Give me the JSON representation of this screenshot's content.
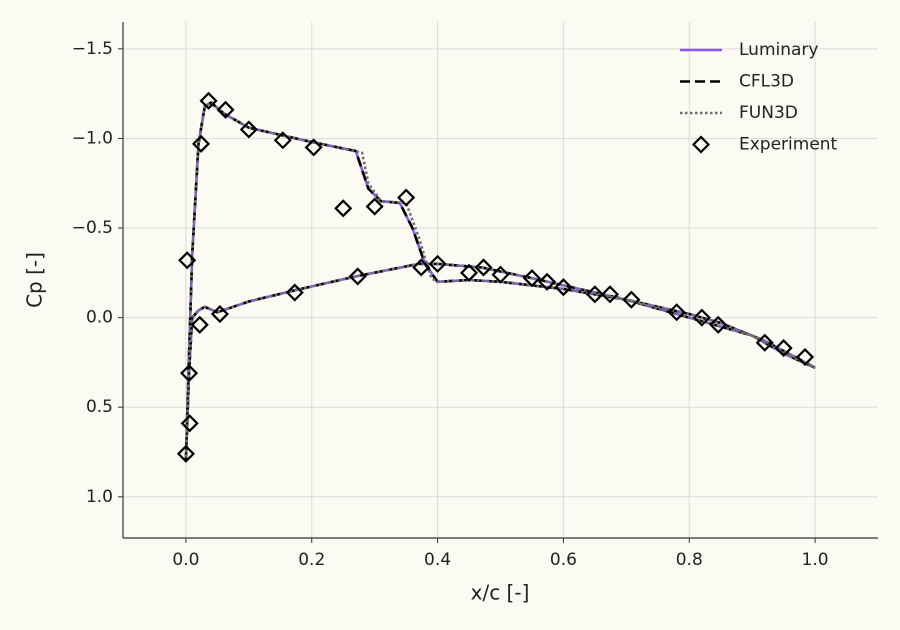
{
  "chart_data": {
    "type": "line",
    "xlabel": "x/c [-]",
    "ylabel": "Cp [-]",
    "xlim": [
      -0.1,
      1.1
    ],
    "ylim": [
      -1.65,
      1.23
    ],
    "y_inverted": true,
    "grid": true,
    "legend": "upper right",
    "xticks": [
      {
        "value": 0,
        "label": "0.0"
      },
      {
        "value": 0.2,
        "label": "0.2"
      },
      {
        "value": 0.4,
        "label": "0.4"
      },
      {
        "value": 0.6,
        "label": "0.6"
      },
      {
        "value": 0.8,
        "label": "0.8"
      },
      {
        "value": 1,
        "label": "1.0"
      }
    ],
    "yticks": [
      {
        "value": -1.5,
        "label": "−1.5"
      },
      {
        "value": -1,
        "label": "−1.0"
      },
      {
        "value": -0.5,
        "label": "−0.5"
      },
      {
        "value": 0,
        "label": "0.0"
      },
      {
        "value": 0.5,
        "label": "0.5"
      },
      {
        "value": 1,
        "label": "1.0"
      }
    ],
    "series": [
      {
        "name": "Luminary",
        "color": "#8b55f0",
        "linestyle": "solid",
        "x": [
          1.0,
          0.95,
          0.9,
          0.8,
          0.7,
          0.6,
          0.5,
          0.45,
          0.4,
          0.38,
          0.36,
          0.34,
          0.31,
          0.29,
          0.27,
          0.2,
          0.15,
          0.1,
          0.06,
          0.04,
          0.03,
          0.02,
          0.01,
          0.005,
          0.0,
          0.005,
          0.01,
          0.02,
          0.03,
          0.05,
          0.1,
          0.17,
          0.27,
          0.37,
          0.4,
          0.47,
          0.55,
          0.6,
          0.65,
          0.7,
          0.8,
          0.85,
          0.92,
          1.0
        ],
        "values": [
          0.28,
          0.2,
          0.1,
          0.0,
          -0.1,
          -0.16,
          -0.2,
          -0.21,
          -0.2,
          -0.3,
          -0.5,
          -0.64,
          -0.65,
          -0.72,
          -0.93,
          -0.98,
          -1.02,
          -1.06,
          -1.14,
          -1.2,
          -1.18,
          -0.97,
          -0.35,
          0.2,
          0.8,
          0.3,
          0.0,
          -0.04,
          -0.06,
          -0.03,
          -0.09,
          -0.15,
          -0.23,
          -0.3,
          -0.3,
          -0.28,
          -0.22,
          -0.18,
          -0.14,
          -0.1,
          -0.02,
          0.03,
          0.13,
          0.28
        ]
      },
      {
        "name": "CFL3D",
        "color": "#000000",
        "linestyle": "dashed",
        "x": [
          1.0,
          0.95,
          0.9,
          0.8,
          0.7,
          0.6,
          0.5,
          0.45,
          0.4,
          0.38,
          0.36,
          0.34,
          0.31,
          0.29,
          0.27,
          0.2,
          0.15,
          0.1,
          0.06,
          0.04,
          0.03,
          0.02,
          0.01,
          0.005,
          0.0,
          0.005,
          0.01,
          0.02,
          0.03,
          0.05,
          0.1,
          0.17,
          0.27,
          0.37,
          0.4,
          0.47,
          0.55,
          0.6,
          0.65,
          0.7,
          0.8,
          0.85,
          0.92,
          1.0
        ],
        "values": [
          0.28,
          0.2,
          0.1,
          0.0,
          -0.1,
          -0.16,
          -0.2,
          -0.21,
          -0.2,
          -0.3,
          -0.5,
          -0.64,
          -0.65,
          -0.72,
          -0.93,
          -0.98,
          -1.02,
          -1.06,
          -1.14,
          -1.2,
          -1.18,
          -0.97,
          -0.35,
          0.2,
          0.8,
          0.3,
          0.0,
          -0.04,
          -0.06,
          -0.03,
          -0.09,
          -0.15,
          -0.23,
          -0.3,
          -0.3,
          -0.28,
          -0.22,
          -0.18,
          -0.14,
          -0.1,
          -0.02,
          0.03,
          0.13,
          0.28
        ]
      },
      {
        "name": "FUN3D",
        "color": "#707070",
        "linestyle": "dotted",
        "x": [
          1.0,
          0.95,
          0.9,
          0.8,
          0.7,
          0.6,
          0.5,
          0.45,
          0.4,
          0.39,
          0.37,
          0.35,
          0.31,
          0.29,
          0.28,
          0.2,
          0.15,
          0.1,
          0.06,
          0.04,
          0.03,
          0.02,
          0.01,
          0.005,
          0.0,
          0.005,
          0.01,
          0.02,
          0.03,
          0.05,
          0.1,
          0.17,
          0.27,
          0.37,
          0.4,
          0.47,
          0.55,
          0.6,
          0.65,
          0.7,
          0.8,
          0.85,
          0.92,
          1.0
        ],
        "values": [
          0.28,
          0.2,
          0.1,
          0.0,
          -0.1,
          -0.16,
          -0.2,
          -0.21,
          -0.2,
          -0.22,
          -0.45,
          -0.64,
          -0.65,
          -0.75,
          -0.92,
          -0.98,
          -1.02,
          -1.06,
          -1.14,
          -1.2,
          -1.18,
          -0.97,
          -0.35,
          0.2,
          0.8,
          0.3,
          0.0,
          -0.04,
          -0.06,
          -0.03,
          -0.09,
          -0.15,
          -0.23,
          -0.3,
          -0.3,
          -0.28,
          -0.22,
          -0.18,
          -0.14,
          -0.1,
          -0.02,
          0.03,
          0.13,
          0.28
        ]
      },
      {
        "name": "Experiment",
        "color": "#000000",
        "linestyle": "none",
        "marker": "diamond",
        "x": [
          0.0,
          0.005,
          0.006,
          0.002,
          0.024,
          0.036,
          0.063,
          0.1,
          0.154,
          0.203,
          0.25,
          0.3,
          0.35,
          0.374,
          0.4,
          0.45,
          0.473,
          0.5,
          0.55,
          0.574,
          0.6,
          0.65,
          0.674,
          0.708,
          0.78,
          0.82,
          0.846,
          0.92,
          0.95,
          0.984,
          0.022,
          0.054,
          0.173,
          0.273
        ],
        "values": [
          0.76,
          0.31,
          0.59,
          -0.32,
          -0.97,
          -1.21,
          -1.16,
          -1.05,
          -0.99,
          -0.95,
          -0.61,
          -0.62,
          -0.67,
          -0.28,
          -0.3,
          -0.25,
          -0.28,
          -0.24,
          -0.22,
          -0.2,
          -0.17,
          -0.13,
          -0.13,
          -0.1,
          -0.03,
          0.0,
          0.04,
          0.14,
          0.17,
          0.22,
          0.04,
          -0.02,
          -0.14,
          -0.23
        ]
      }
    ]
  }
}
